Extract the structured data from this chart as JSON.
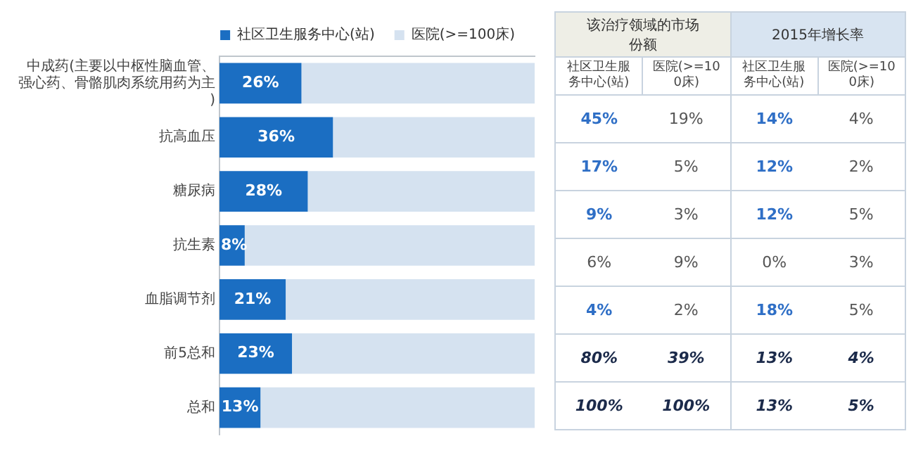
{
  "chart_data": [
    {
      "type": "bar",
      "orientation": "horizontal",
      "stacked": true,
      "categories": [
        "中成药(主要以中枢性脑血管、强心药、骨骼肌肉系统用药为主)",
        "抗高血压",
        "糖尿病",
        "抗生素",
        "血脂调节剂",
        "前5总和",
        "总和"
      ],
      "series": [
        {
          "name": "社区卫生服务中心(站)",
          "color": "#1b6ec2",
          "values": [
            26,
            36,
            28,
            8,
            21,
            23,
            13
          ],
          "value_labels": [
            "26%",
            "36%",
            "28%",
            "8%",
            "21%",
            "23%",
            "13%"
          ]
        },
        {
          "name": "医院(>=100床)",
          "color": "#d5e2f0",
          "values": [
            74,
            64,
            72,
            92,
            79,
            77,
            87
          ]
        }
      ],
      "xlim": [
        0,
        100
      ],
      "tick_labels": "y",
      "grid": false,
      "legend": "top"
    },
    {
      "type": "other",
      "annotations": [
        "该治疗领域的市场份额",
        "2015年增长率",
        "社区卫生服务中心(站)",
        "医院(>=100床)",
        "社区卫生服务中心(站)",
        "医院(>=100床)",
        "45%",
        "19%",
        "14%",
        "4%",
        "17%",
        "5%",
        "12%",
        "2%",
        "9%",
        "3%",
        "12%",
        "5%",
        "6%",
        "9%",
        "0%",
        "3%",
        "4%",
        "2%",
        "18%",
        "5%",
        "80%",
        "39%",
        "13%",
        "4%",
        "100%",
        "100%",
        "13%",
        "5%"
      ]
    }
  ]
}
